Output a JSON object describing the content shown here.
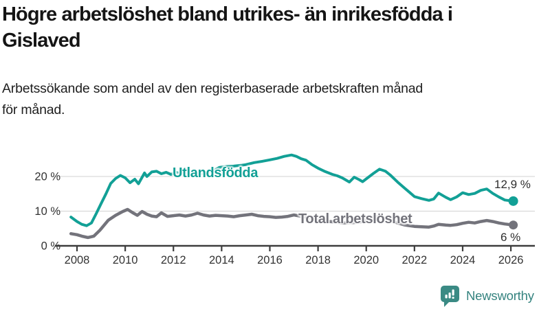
{
  "header": {
    "title_lines": [
      "Högre arbetslöshet bland utrikes- än inrikesfödda i",
      "Gislaved"
    ],
    "subtitle_lines": [
      "Arbetssökande som andel av den registerbaserade arbetskraften månad",
      "för månad."
    ]
  },
  "chart_data": {
    "type": "line",
    "title": "Högre arbetslöshet bland utrikes- än inrikesfödda i Gislaved",
    "subtitle": "Arbetssökande som andel av den registerbaserade arbetskraften månad för månad.",
    "unit": "%",
    "grid": "horizontal-y",
    "legend_position": "inline-labels",
    "xlim": [
      2007.6,
      2027
    ],
    "ylim": [
      0,
      30
    ],
    "x_ticks": [
      2008,
      2010,
      2012,
      2014,
      2016,
      2018,
      2020,
      2022,
      2024,
      2026
    ],
    "y_ticks": [
      {
        "value": 0,
        "label": "0 %"
      },
      {
        "value": 10,
        "label": "10 %"
      },
      {
        "value": 20,
        "label": "20 %"
      }
    ],
    "series": [
      {
        "name": "Utlandsfödda",
        "color": "#12a096",
        "end_value": 12.9,
        "end_value_label": "12,9 %",
        "points": [
          [
            2007.75,
            8.3
          ],
          [
            2008.0,
            7.0
          ],
          [
            2008.2,
            6.2
          ],
          [
            2008.4,
            5.8
          ],
          [
            2008.6,
            6.6
          ],
          [
            2008.8,
            9.3
          ],
          [
            2009.0,
            12.2
          ],
          [
            2009.2,
            15.0
          ],
          [
            2009.4,
            18.0
          ],
          [
            2009.6,
            19.4
          ],
          [
            2009.8,
            20.3
          ],
          [
            2010.0,
            19.6
          ],
          [
            2010.2,
            18.2
          ],
          [
            2010.4,
            19.2
          ],
          [
            2010.55,
            17.9
          ],
          [
            2010.8,
            21.0
          ],
          [
            2010.9,
            20.0
          ],
          [
            2011.1,
            21.3
          ],
          [
            2011.3,
            21.5
          ],
          [
            2011.5,
            20.8
          ],
          [
            2011.7,
            21.2
          ],
          [
            2011.9,
            20.6
          ],
          [
            2012.1,
            21.2
          ],
          [
            2012.3,
            20.8
          ],
          [
            2012.5,
            21.0
          ],
          [
            2012.7,
            20.6
          ],
          [
            2012.9,
            20.5
          ],
          [
            2013.1,
            20.8
          ],
          [
            2013.35,
            21.0
          ],
          [
            2013.6,
            21.4
          ],
          [
            2013.9,
            22.6
          ],
          [
            2014.2,
            22.9
          ],
          [
            2014.5,
            23.0
          ],
          [
            2014.8,
            23.2
          ],
          [
            2015.0,
            23.4
          ],
          [
            2015.35,
            24.0
          ],
          [
            2015.7,
            24.4
          ],
          [
            2016.0,
            24.8
          ],
          [
            2016.3,
            25.2
          ],
          [
            2016.6,
            25.8
          ],
          [
            2016.9,
            26.2
          ],
          [
            2017.1,
            25.8
          ],
          [
            2017.3,
            25.1
          ],
          [
            2017.5,
            24.7
          ],
          [
            2017.75,
            23.4
          ],
          [
            2018.0,
            22.4
          ],
          [
            2018.3,
            21.4
          ],
          [
            2018.6,
            20.6
          ],
          [
            2018.8,
            20.2
          ],
          [
            2019.0,
            19.6
          ],
          [
            2019.3,
            18.4
          ],
          [
            2019.5,
            19.8
          ],
          [
            2019.7,
            19.1
          ],
          [
            2019.85,
            18.5
          ],
          [
            2020.0,
            19.3
          ],
          [
            2020.3,
            20.9
          ],
          [
            2020.55,
            22.1
          ],
          [
            2020.8,
            21.5
          ],
          [
            2021.0,
            20.4
          ],
          [
            2021.3,
            18.4
          ],
          [
            2021.6,
            16.6
          ],
          [
            2021.8,
            15.4
          ],
          [
            2022.0,
            14.2
          ],
          [
            2022.3,
            13.6
          ],
          [
            2022.6,
            13.1
          ],
          [
            2022.8,
            13.5
          ],
          [
            2023.0,
            15.2
          ],
          [
            2023.3,
            14.0
          ],
          [
            2023.5,
            13.3
          ],
          [
            2023.75,
            14.1
          ],
          [
            2024.0,
            15.3
          ],
          [
            2024.25,
            14.8
          ],
          [
            2024.5,
            15.1
          ],
          [
            2024.75,
            16.0
          ],
          [
            2025.0,
            16.4
          ],
          [
            2025.25,
            15.1
          ],
          [
            2025.5,
            14.1
          ],
          [
            2025.75,
            13.2
          ],
          [
            2026.1,
            12.9
          ]
        ]
      },
      {
        "name": "Total arbetslöshet",
        "color": "#73737b",
        "end_value": 6.0,
        "end_value_label": "6 %",
        "points": [
          [
            2007.75,
            3.5
          ],
          [
            2008.0,
            3.2
          ],
          [
            2008.2,
            2.8
          ],
          [
            2008.45,
            2.4
          ],
          [
            2008.7,
            2.8
          ],
          [
            2008.95,
            4.5
          ],
          [
            2009.3,
            7.4
          ],
          [
            2009.6,
            8.8
          ],
          [
            2009.9,
            9.9
          ],
          [
            2010.1,
            10.5
          ],
          [
            2010.3,
            9.6
          ],
          [
            2010.5,
            8.8
          ],
          [
            2010.7,
            9.9
          ],
          [
            2010.9,
            9.1
          ],
          [
            2011.1,
            8.6
          ],
          [
            2011.3,
            8.4
          ],
          [
            2011.5,
            9.5
          ],
          [
            2011.75,
            8.5
          ],
          [
            2012.0,
            8.7
          ],
          [
            2012.25,
            8.9
          ],
          [
            2012.5,
            8.6
          ],
          [
            2012.75,
            8.9
          ],
          [
            2013.0,
            9.4
          ],
          [
            2013.25,
            8.9
          ],
          [
            2013.5,
            8.6
          ],
          [
            2013.75,
            8.8
          ],
          [
            2014.0,
            8.7
          ],
          [
            2014.25,
            8.6
          ],
          [
            2014.5,
            8.4
          ],
          [
            2014.75,
            8.7
          ],
          [
            2015.0,
            8.9
          ],
          [
            2015.25,
            9.1
          ],
          [
            2015.5,
            8.7
          ],
          [
            2015.75,
            8.5
          ],
          [
            2016.0,
            8.4
          ],
          [
            2016.25,
            8.2
          ],
          [
            2016.5,
            8.3
          ],
          [
            2016.75,
            8.5
          ],
          [
            2017.0,
            8.9
          ],
          [
            2017.3,
            8.5
          ],
          [
            2017.6,
            8.1
          ],
          [
            2017.8,
            7.8
          ],
          [
            2018.0,
            7.4
          ],
          [
            2018.5,
            7.0
          ],
          [
            2019.0,
            6.6
          ],
          [
            2019.5,
            6.7
          ],
          [
            2019.75,
            6.9
          ],
          [
            2020.0,
            7.3
          ],
          [
            2020.3,
            8.2
          ],
          [
            2020.55,
            8.5
          ],
          [
            2020.8,
            7.9
          ],
          [
            2021.0,
            7.3
          ],
          [
            2021.3,
            6.6
          ],
          [
            2021.6,
            6.0
          ],
          [
            2021.8,
            5.8
          ],
          [
            2022.0,
            5.6
          ],
          [
            2022.3,
            5.5
          ],
          [
            2022.6,
            5.4
          ],
          [
            2022.8,
            5.7
          ],
          [
            2023.0,
            6.2
          ],
          [
            2023.3,
            6.0
          ],
          [
            2023.5,
            5.9
          ],
          [
            2023.75,
            6.1
          ],
          [
            2024.0,
            6.5
          ],
          [
            2024.25,
            6.8
          ],
          [
            2024.5,
            6.6
          ],
          [
            2024.75,
            7.0
          ],
          [
            2025.0,
            7.3
          ],
          [
            2025.25,
            7.0
          ],
          [
            2025.5,
            6.6
          ],
          [
            2025.75,
            6.3
          ],
          [
            2026.1,
            6.0
          ]
        ]
      }
    ]
  },
  "footer": {
    "brand": "Newsworthy",
    "logo_icon": "newsworthy-speech-bubble-bar-chart-icon",
    "brand_color": "#35837f"
  },
  "colors": {
    "accent_teal": "#12a096",
    "series_gray": "#73737b",
    "axis": "#3d3d3d",
    "grid": "#d9d9d9",
    "tick_text": "#333333",
    "background": "#ffffff"
  }
}
